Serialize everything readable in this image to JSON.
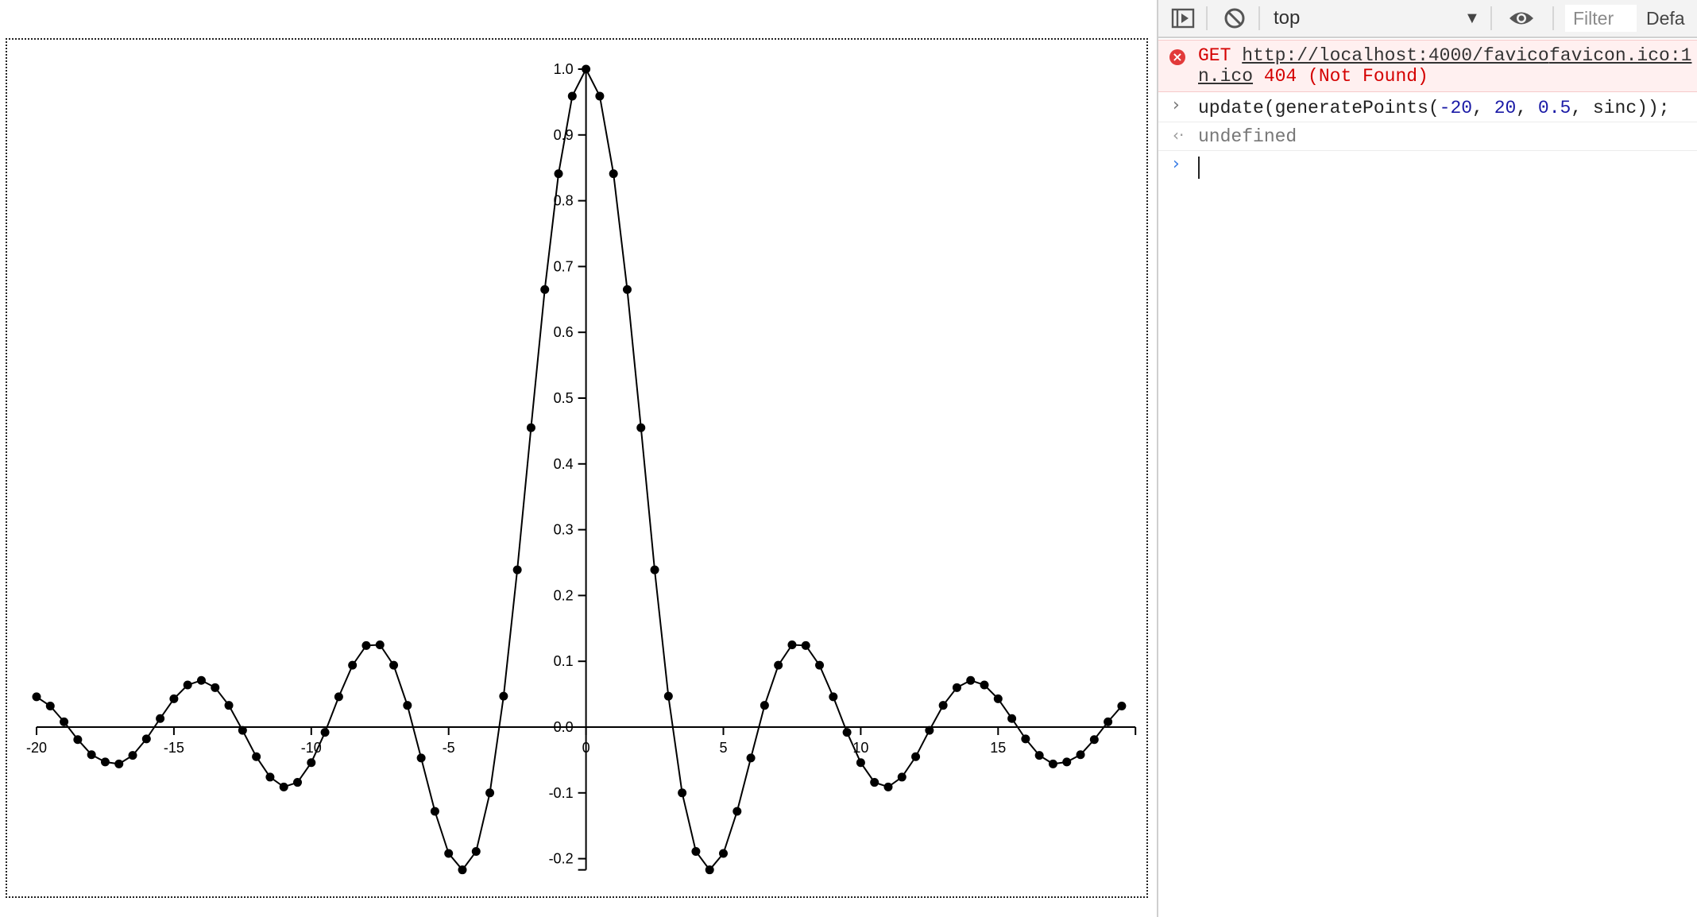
{
  "chart_data": {
    "type": "line",
    "title": "",
    "xlabel": "",
    "ylabel": "",
    "xlim": [
      -20,
      20
    ],
    "ylim": [
      -0.217,
      1.0
    ],
    "grid": false,
    "markers": true,
    "x_ticks": [
      -20,
      -15,
      -10,
      -5,
      0,
      5,
      10,
      15
    ],
    "x_tick_labels": [
      "-20",
      "-15",
      "-10",
      "-5",
      "0",
      "5",
      "10",
      "15"
    ],
    "y_ticks": [
      -0.2,
      -0.1,
      0.0,
      0.1,
      0.2,
      0.3,
      0.4,
      0.5,
      0.6,
      0.7,
      0.8,
      0.9,
      1.0
    ],
    "y_tick_labels": [
      "-0.2",
      "-0.1",
      "0.0",
      "0.1",
      "0.2",
      "0.3",
      "0.4",
      "0.5",
      "0.6",
      "0.7",
      "0.8",
      "0.9",
      "1.0"
    ],
    "series": [
      {
        "x": [
          -20,
          -19.5,
          -19,
          -18.5,
          -18,
          -17.5,
          -17,
          -16.5,
          -16,
          -15.5,
          -15,
          -14.5,
          -14,
          -13.5,
          -13,
          -12.5,
          -12,
          -11.5,
          -11,
          -10.5,
          -10,
          -9.5,
          -9,
          -8.5,
          -8,
          -7.5,
          -7,
          -6.5,
          -6,
          -5.5,
          -5,
          -4.5,
          -4,
          -3.5,
          -3,
          -2.5,
          -2,
          -1.5,
          -1,
          -0.5,
          0,
          0.5,
          1,
          1.5,
          2,
          2.5,
          3,
          3.5,
          4,
          4.5,
          5,
          5.5,
          6,
          6.5,
          7,
          7.5,
          8,
          8.5,
          9,
          9.5,
          10,
          10.5,
          11,
          11.5,
          12,
          12.5,
          13,
          13.5,
          14,
          14.5,
          15,
          15.5,
          16,
          16.5,
          17,
          17.5,
          18,
          18.5,
          19,
          19.5
        ],
        "y": [
          0.046,
          0.032,
          0.008,
          -0.019,
          -0.042,
          -0.053,
          -0.056,
          -0.043,
          -0.018,
          0.013,
          0.043,
          0.064,
          0.071,
          0.06,
          0.033,
          -0.005,
          -0.045,
          -0.076,
          -0.091,
          -0.084,
          -0.054,
          -0.008,
          0.046,
          0.094,
          0.124,
          0.125,
          0.094,
          0.033,
          -0.047,
          -0.128,
          -0.192,
          -0.217,
          -0.189,
          -0.1,
          0.047,
          0.239,
          0.455,
          0.665,
          0.841,
          0.959,
          1.0,
          0.959,
          0.841,
          0.665,
          0.455,
          0.239,
          0.047,
          -0.1,
          -0.189,
          -0.217,
          -0.192,
          -0.128,
          -0.047,
          0.033,
          0.094,
          0.125,
          0.124,
          0.094,
          0.046,
          -0.008,
          -0.054,
          -0.084,
          -0.091,
          -0.076,
          -0.045,
          -0.005,
          0.033,
          0.06,
          0.071,
          0.064,
          0.043,
          0.013,
          -0.018,
          -0.043,
          -0.056,
          -0.053,
          -0.042,
          -0.019,
          0.008,
          0.032
        ]
      }
    ]
  },
  "devtools": {
    "toolbar": {
      "context": "top",
      "filter_placeholder": "Filter",
      "levels": "Default levels"
    },
    "console": {
      "error": {
        "method": "GET",
        "url_part1": "http://localhost:4000/favico",
        "url_part2": "n.ico",
        "status": "404 (Not Found)",
        "source": "favicon.ico:1"
      },
      "input": {
        "prefix": "update(generatePoints(",
        "arg1": "-20",
        "sep1": ", ",
        "arg2": "20",
        "sep2": ", ",
        "arg3": "0.5",
        "suffix": ", sinc));"
      },
      "result": "undefined"
    },
    "colors": {
      "error_bg": "#fff0f0",
      "error_text": "#d40000",
      "number": "#1a1aa6"
    }
  }
}
